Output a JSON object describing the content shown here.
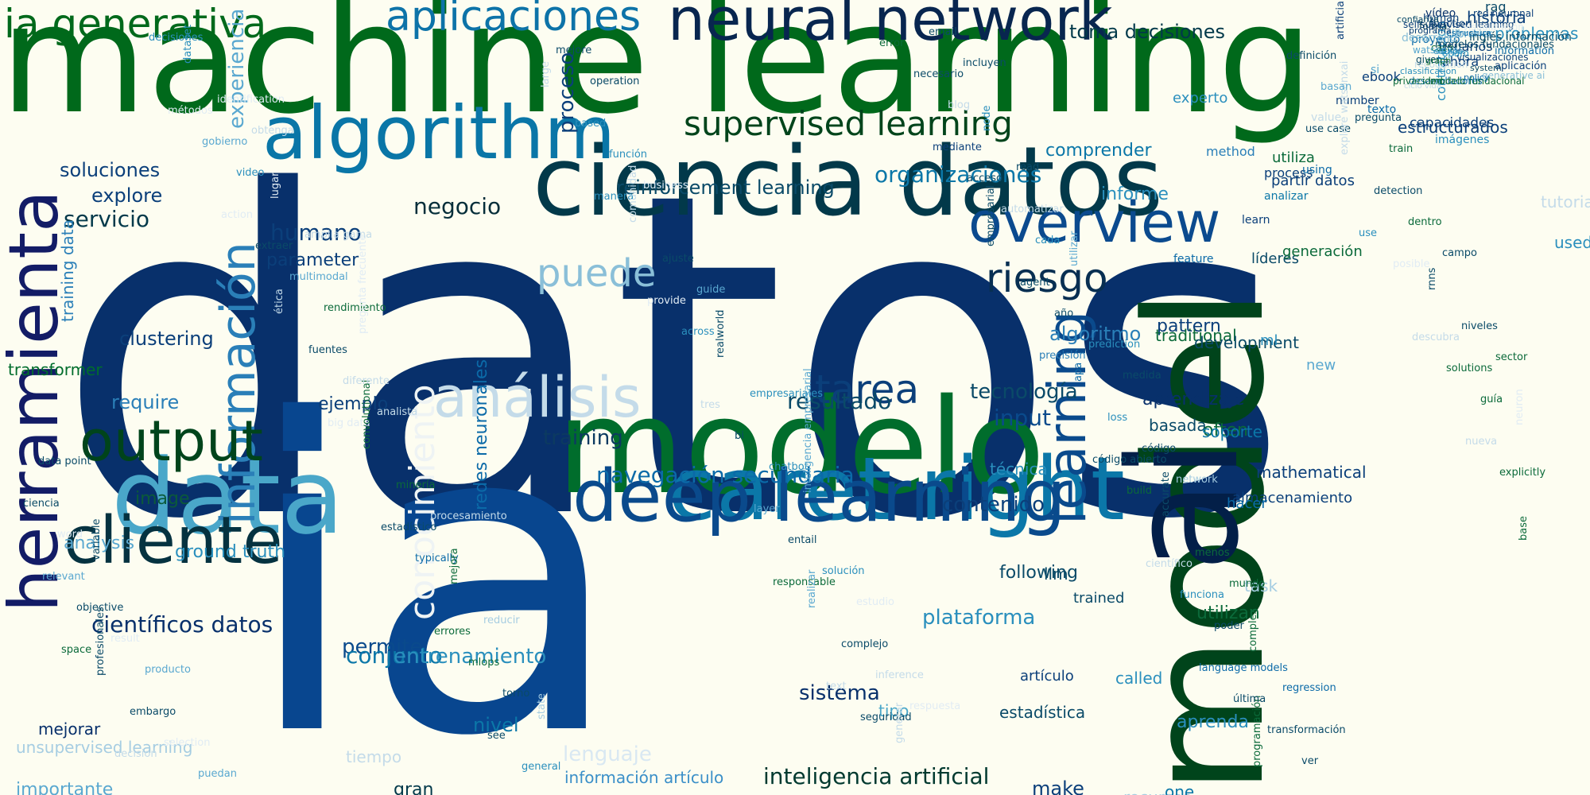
{
  "words": [
    {
      "text": "datos",
      "color": "#08306b"
    },
    {
      "text": "machine learning",
      "color": "#00691b"
    },
    {
      "text": "ia",
      "color": "#08468f"
    },
    {
      "text": "modelo",
      "color": "#006d2c"
    },
    {
      "text": "model",
      "color": "#00441b"
    },
    {
      "text": "ciencia datos",
      "color": "#02394a"
    },
    {
      "text": "ai",
      "color": "#031f48"
    },
    {
      "text": "herramienta",
      "color": "#131c66"
    },
    {
      "text": "caret right",
      "color": "#0b77a8"
    },
    {
      "text": "data",
      "color": "#4aa7c9"
    },
    {
      "text": "neural network",
      "color": "#08264f"
    },
    {
      "text": "algorithm",
      "color": "#0a76a7"
    },
    {
      "text": "deep learning",
      "color": "#0a4a8c"
    },
    {
      "text": "información",
      "color": "#2a7fb8"
    },
    {
      "text": "cliente",
      "color": "#053240"
    },
    {
      "text": "aplicaciones",
      "color": "#0d73a8"
    },
    {
      "text": "output",
      "color": "#00441b"
    },
    {
      "text": "ia generativa",
      "color": "#00691b"
    },
    {
      "text": "overview",
      "color": "#0b4a8e"
    },
    {
      "text": "conocimiento",
      "color": "#eef3f4"
    },
    {
      "text": "learning",
      "color": "#0a4a8c"
    },
    {
      "text": "análisis",
      "color": "#c4dbe9"
    },
    {
      "text": "supervised learning",
      "color": "#00441b"
    },
    {
      "text": "tarea",
      "color": "#0b3f7a"
    },
    {
      "text": "riesgo",
      "color": "#082f52"
    },
    {
      "text": "puede",
      "color": "#8abfd8"
    },
    {
      "text": "reinforcement learning",
      "color": "#0a4a68"
    },
    {
      "text": "científicos datos",
      "color": "#08306b"
    },
    {
      "text": "inteligencia artificial",
      "color": "#00392f"
    },
    {
      "text": "redes neuronales",
      "color": "#0b6aa8"
    },
    {
      "text": "lenguaje",
      "color": "#d9e8f2"
    },
    {
      "text": "training",
      "color": "#0c3a61"
    },
    {
      "text": "negocio",
      "color": "#052e3a"
    },
    {
      "text": "servicio",
      "color": "#02394a"
    },
    {
      "text": "humano",
      "color": "#0b3f7a"
    },
    {
      "text": "resultado",
      "color": "#0a4a68"
    },
    {
      "text": "permite",
      "color": "#0a4a8c"
    },
    {
      "text": "conjunto",
      "color": "#0b77a8"
    },
    {
      "text": "sistema",
      "color": "#08306b"
    },
    {
      "text": "información artículo",
      "color": "#3a8fc8"
    },
    {
      "text": "navegación secundaria",
      "color": "#0b6aa8"
    },
    {
      "text": "input",
      "color": "#0a4a8c"
    },
    {
      "text": "plataforma",
      "color": "#2a8fbd"
    },
    {
      "text": "organizaciones",
      "color": "#0b77a8"
    },
    {
      "text": "contenido",
      "color": "#0b3f7a"
    },
    {
      "text": "ground truth",
      "color": "#2a8fbd"
    },
    {
      "text": "entrenamiento",
      "color": "#2a8fbd"
    },
    {
      "text": "toma decisiones",
      "color": "#02394a"
    },
    {
      "text": "tecnología",
      "color": "#0a4a68"
    },
    {
      "text": "algoritmo",
      "color": "#2a7fb8"
    },
    {
      "text": "experiencia",
      "color": "#5aa8d0"
    },
    {
      "text": "proceso",
      "color": "#0b3f7a"
    },
    {
      "text": "explore",
      "color": "#0b3f7a"
    },
    {
      "text": "soluciones",
      "color": "#0b3f7a"
    },
    {
      "text": "parameter",
      "color": "#0b3f7a"
    },
    {
      "text": "comprender",
      "color": "#0b77a8"
    },
    {
      "text": "informe",
      "color": "#2a8fbd"
    },
    {
      "text": "aprendizaje",
      "color": "#08306b"
    },
    {
      "text": "pattern",
      "color": "#0b3f7a"
    },
    {
      "text": "clustering",
      "color": "#0b3f7a"
    },
    {
      "text": "ejemplo",
      "color": "#0b3f7a"
    },
    {
      "text": "require",
      "color": "#2a7fb8"
    },
    {
      "text": "image",
      "color": "#0b5a3a"
    },
    {
      "text": "analysis",
      "color": "#5aa8d0"
    },
    {
      "text": "training data",
      "color": "#2a7fb8"
    },
    {
      "text": "transformer",
      "color": "#006d2c"
    },
    {
      "text": "tiempo",
      "color": "#c4dbe9"
    },
    {
      "text": "importante",
      "color": "#5aa8d0"
    },
    {
      "text": "unsupervised learning",
      "color": "#a6cde2"
    },
    {
      "text": "mejorar",
      "color": "#08306b"
    },
    {
      "text": "nivel",
      "color": "#0b77a8"
    },
    {
      "text": "gran",
      "color": "#02394a"
    },
    {
      "text": "tipo",
      "color": "#4aa7c9"
    },
    {
      "text": "estadística",
      "color": "#0a4a68"
    },
    {
      "text": "aprenda",
      "color": "#2a8fbd"
    },
    {
      "text": "make",
      "color": "#0b3f7a"
    },
    {
      "text": "recursos",
      "color": "#a6cde2"
    },
    {
      "text": "one",
      "color": "#0b77a8"
    },
    {
      "text": "called",
      "color": "#2a8fbd"
    },
    {
      "text": "artículo",
      "color": "#0b3f7a"
    },
    {
      "text": "following",
      "color": "#0a4a68"
    },
    {
      "text": "llm",
      "color": "#0a4a68"
    },
    {
      "text": "trained",
      "color": "#0a4a68"
    },
    {
      "text": "utilizan",
      "color": "#0b6a3a"
    },
    {
      "text": "task",
      "color": "#a6cde2"
    },
    {
      "text": "técnica",
      "color": "#2a8fbd"
    },
    {
      "text": "basada",
      "color": "#0a4a68"
    },
    {
      "text": "often",
      "color": "#0b6a3a"
    },
    {
      "text": "almacenamiento",
      "color": "#0b3f7a"
    },
    {
      "text": "hacer",
      "color": "#0b6aa8"
    },
    {
      "text": "mathematical",
      "color": "#0b3f7a"
    },
    {
      "text": "traditional",
      "color": "#0b6a3a"
    },
    {
      "text": "soporte",
      "color": "#0b77a8"
    },
    {
      "text": "development",
      "color": "#0a4a68"
    },
    {
      "text": "ml",
      "color": "#2a8fbd"
    },
    {
      "text": "new",
      "color": "#5aa8d0"
    },
    {
      "text": "used",
      "color": "#2a8fbd"
    },
    {
      "text": "tutorial",
      "color": "#c4dbe9"
    },
    {
      "text": "problemas",
      "color": "#2a8fbd"
    },
    {
      "text": "historia",
      "color": "#0b3f7a"
    },
    {
      "text": "rag",
      "color": "#0a4a68"
    },
    {
      "text": "contratación",
      "color": "#2a8fbd"
    },
    {
      "text": "ahora",
      "color": "#0b3f7a"
    },
    {
      "text": "imágenes",
      "color": "#2a8fbd"
    },
    {
      "text": "usuarios",
      "color": "#0b3f7a"
    },
    {
      "text": "vídeo",
      "color": "#08306b"
    },
    {
      "text": "capacidades",
      "color": "#0b3f7a"
    },
    {
      "text": "process",
      "color": "#0b3f7a"
    },
    {
      "text": "method",
      "color": "#2a7fb8"
    },
    {
      "text": "líderes",
      "color": "#0a4a68"
    },
    {
      "text": "feature",
      "color": "#0b6aa8"
    },
    {
      "text": "experto",
      "color": "#2a8fbd"
    },
    {
      "text": "analizar",
      "color": "#0b77a8"
    },
    {
      "text": "generación",
      "color": "#0b6a3a"
    },
    {
      "text": "utiliza",
      "color": "#0b6a3a"
    },
    {
      "text": "partir datos",
      "color": "#0b3f7a"
    },
    {
      "text": "using",
      "color": "#0b6aa8"
    },
    {
      "text": "value",
      "color": "#c4dbe9"
    },
    {
      "text": "learn",
      "color": "#0b3f7a"
    },
    {
      "text": "number",
      "color": "#0b3f7a"
    },
    {
      "text": "si",
      "color": "#5aa8d0"
    },
    {
      "text": "estructurados",
      "color": "#0b3f7a"
    },
    {
      "text": "texto",
      "color": "#0b6aa8"
    },
    {
      "text": "proyecto",
      "color": "#0b6aa8"
    },
    {
      "text": "ebook",
      "color": "#0b3f7a"
    },
    {
      "text": "desarrollo",
      "color": "#8abfd8"
    },
    {
      "text": "libraries",
      "color": "#5aa8d0"
    },
    {
      "text": "information",
      "color": "#0b6aa8"
    },
    {
      "text": "generative ai",
      "color": "#8abfd8"
    },
    {
      "text": "aplicación",
      "color": "#0b3f7a"
    },
    {
      "text": "caso",
      "color": "#0b6a3a"
    },
    {
      "text": "inglés información",
      "color": "#0a4a68"
    },
    {
      "text": "forma",
      "color": "#02394a"
    },
    {
      "text": "watsonxai",
      "color": "#5aa8d0"
    },
    {
      "text": "human",
      "color": "#0b3f7a"
    },
    {
      "text": "modelos fundacionales",
      "color": "#0a4a68"
    },
    {
      "text": "desarrolladores",
      "color": "#0b6aa8"
    },
    {
      "text": "function",
      "color": "#0b3f7a"
    },
    {
      "text": "recognition",
      "color": "#c4dbe9"
    },
    {
      "text": "selfsupervised learning",
      "color": "#0b3f7a"
    },
    {
      "text": "red neuronal",
      "color": "#0b3f7a"
    },
    {
      "text": "visualizaciones",
      "color": "#0b3f7a"
    },
    {
      "text": "modelo fundacional",
      "color": "#0b6a3a"
    },
    {
      "text": "confianza",
      "color": "#0a4a68"
    },
    {
      "text": "given",
      "color": "#0a4a68"
    },
    {
      "text": "visualización",
      "color": "#e1ecf4"
    },
    {
      "text": "system",
      "color": "#0a4a68"
    },
    {
      "text": "spam",
      "color": "#2a8fbd"
    },
    {
      "text": "estructura",
      "color": "#0b6aa8"
    },
    {
      "text": "classification",
      "color": "#2a8fbd"
    },
    {
      "text": "privacidad",
      "color": "#0b6a3a"
    },
    {
      "text": "ciclo vida",
      "color": "#c4dbe9"
    },
    {
      "text": "graph",
      "color": "#0b6a3a"
    },
    {
      "text": "programa",
      "color": "#0b3f7a"
    },
    {
      "text": "policy",
      "color": "#0b6aa8"
    },
    {
      "text": "equipo",
      "color": "#2a8fbd"
    },
    {
      "text": "responsable",
      "color": "#0b6a3a"
    },
    {
      "text": "text",
      "color": "#c4dbe9"
    },
    {
      "text": "error",
      "color": "#0b6a3a"
    },
    {
      "text": "mediante",
      "color": "#0b3f7a"
    },
    {
      "text": "empresarial",
      "color": "#0a4a68"
    },
    {
      "text": "precisión",
      "color": "#2a7fb8"
    },
    {
      "text": "código abierto",
      "color": "#0a4a68"
    },
    {
      "text": "científico",
      "color": "#c4dbe9"
    },
    {
      "text": "language models",
      "color": "#0b6aa8"
    },
    {
      "text": "programación",
      "color": "#0b6a3a"
    },
    {
      "text": "use case",
      "color": "#0a4a68"
    },
    {
      "text": "use",
      "color": "#2a8fbd"
    },
    {
      "text": "descubra",
      "color": "#c4dbe9"
    },
    {
      "text": "nueva",
      "color": "#c4dbe9"
    },
    {
      "text": "base",
      "color": "#0b6a3a"
    },
    {
      "text": "space",
      "color": "#0b6a3a"
    },
    {
      "text": "decision",
      "color": "#c4dbe9"
    },
    {
      "text": "métodos",
      "color": "#e1ecf4"
    },
    {
      "text": "action",
      "color": "#e1ecf4"
    },
    {
      "text": "ética",
      "color": "#c4dbe9"
    },
    {
      "text": "big data",
      "color": "#e1ecf4"
    },
    {
      "text": "estadístico",
      "color": "#0a4a68"
    },
    {
      "text": "errores",
      "color": "#0b6a3a"
    },
    {
      "text": "see",
      "color": "#0a4a68"
    },
    {
      "text": "large",
      "color": "#c4dbe9"
    },
    {
      "text": "manera",
      "color": "#2a8fbd"
    },
    {
      "text": "provide",
      "color": "#e1ecf4"
    },
    {
      "text": "tres",
      "color": "#c4dbe9"
    },
    {
      "text": "layer",
      "color": "#5aa8d0"
    },
    {
      "text": "realizar",
      "color": "#5aa8d0"
    },
    {
      "text": "seguridad",
      "color": "#0a4a68"
    },
    {
      "text": "necesario",
      "color": "#0a4a68"
    },
    {
      "text": "acceso",
      "color": "#0a4a68"
    },
    {
      "text": "agent",
      "color": "#0a4a68"
    },
    {
      "text": "apa",
      "color": "#0b6aa8"
    },
    {
      "text": "build",
      "color": "#0b6a3a"
    },
    {
      "text": "funciona",
      "color": "#2a8fbd"
    },
    {
      "text": "última",
      "color": "#0a4a68"
    },
    {
      "text": "definición",
      "color": "#0a4a68"
    },
    {
      "text": "explore watsonxai",
      "color": "#c4dbe9"
    },
    {
      "text": "posible",
      "color": "#e1ecf4"
    },
    {
      "text": "solutions",
      "color": "#0b6a3a"
    },
    {
      "text": "explicitly",
      "color": "#0b6a3a"
    },
    {
      "text": "relevant",
      "color": "#5aa8d0"
    },
    {
      "text": "profesionales",
      "color": "#0a4a68"
    },
    {
      "text": "decisiones",
      "color": "#2a8fbd"
    },
    {
      "text": "gobierno",
      "color": "#5aa8d0"
    },
    {
      "text": "extraer",
      "color": "#0a4a68"
    },
    {
      "text": "fuentes",
      "color": "#0a4a68"
    },
    {
      "text": "convolutional",
      "color": "#0b6a3a"
    },
    {
      "text": "typically",
      "color": "#0b6aa8"
    },
    {
      "text": "mlops",
      "color": "#0b6a3a"
    },
    {
      "text": "general",
      "color": "#2a8fbd"
    },
    {
      "text": "based",
      "color": "#2a8fbd"
    },
    {
      "text": "comunidad",
      "color": "#c4dbe9"
    },
    {
      "text": "across",
      "color": "#2a8fbd"
    },
    {
      "text": "bi",
      "color": "#0a4a68"
    },
    {
      "text": "entail",
      "color": "#0a4a68"
    },
    {
      "text": "complejo",
      "color": "#0a4a68"
    },
    {
      "text": "generar",
      "color": "#c4dbe9"
    },
    {
      "text": "blog",
      "color": "#c4dbe9"
    },
    {
      "text": "automatizar",
      "color": "#c4dbe9"
    },
    {
      "text": "año",
      "color": "#0a4a68"
    },
    {
      "text": "loss",
      "color": "#2a8fbd"
    },
    {
      "text": "accurate",
      "color": "#0a4a68"
    },
    {
      "text": "poder",
      "color": "#0a4a68"
    },
    {
      "text": "transformación",
      "color": "#0a4a68"
    },
    {
      "text": "basan",
      "color": "#5aa8d0"
    },
    {
      "text": "detection",
      "color": "#0a4a68"
    },
    {
      "text": "rnns",
      "color": "#0a4a68"
    },
    {
      "text": "guía",
      "color": "#0b6a3a"
    },
    {
      "text": "ciencia",
      "color": "#0a4a68"
    },
    {
      "text": "objective",
      "color": "#0a4a68"
    },
    {
      "text": "embargo",
      "color": "#0a4a68"
    },
    {
      "text": "dataset",
      "color": "#2a8fbd"
    },
    {
      "text": "video",
      "color": "#2a8fbd"
    },
    {
      "text": "multimodal",
      "color": "#5aa8d0"
    },
    {
      "text": "diferente",
      "color": "#c4dbe9"
    },
    {
      "text": "minería",
      "color": "#0b6a3a"
    },
    {
      "text": "mejora",
      "color": "#0b6a3a"
    },
    {
      "text": "torno",
      "color": "#0a4a68"
    },
    {
      "text": "mejore",
      "color": "#0a4a68"
    },
    {
      "text": "función",
      "color": "#2a8fbd"
    },
    {
      "text": "ajuste",
      "color": "#0a4a68"
    },
    {
      "text": "realworld",
      "color": "#0a4a68"
    },
    {
      "text": "chatbot",
      "color": "#2a8fbd"
    },
    {
      "text": "solución",
      "color": "#2a8fbd"
    },
    {
      "text": "inference",
      "color": "#c4dbe9"
    },
    {
      "text": "email",
      "color": "#0a4a68"
    },
    {
      "text": "node",
      "color": "#2a8fbd"
    },
    {
      "text": "cada",
      "color": "#2a8fbd"
    },
    {
      "text": "prediction",
      "color": "#2a8fbd"
    },
    {
      "text": "código",
      "color": "#0a4a68"
    },
    {
      "text": "menos",
      "color": "#0b6a3a"
    },
    {
      "text": "complex",
      "color": "#0b6a3a"
    },
    {
      "text": "ver",
      "color": "#0a4a68"
    },
    {
      "text": "pregunta",
      "color": "#0a4a68"
    },
    {
      "text": "dentro",
      "color": "#0b6a3a"
    },
    {
      "text": "niveles",
      "color": "#0a4a68"
    },
    {
      "text": "neuron",
      "color": "#e1ecf4"
    },
    {
      "text": "word",
      "color": "#e1ecf4"
    },
    {
      "text": "result",
      "color": "#e1ecf4"
    },
    {
      "text": "selection",
      "color": "#e1ecf4"
    },
    {
      "text": "identification",
      "color": "#e1ecf4"
    },
    {
      "text": "lugar",
      "color": "#e1ecf4"
    },
    {
      "text": "rendimiento",
      "color": "#0b6a3a"
    },
    {
      "text": "analista",
      "color": "#c4dbe9"
    },
    {
      "text": "procesamiento",
      "color": "#c4dbe9"
    },
    {
      "text": "reducir",
      "color": "#a6cde2"
    },
    {
      "text": "state",
      "color": "#a6cde2"
    },
    {
      "text": "operation",
      "color": "#0a4a68"
    },
    {
      "text": "business",
      "color": "#e1ecf4"
    },
    {
      "text": "guide",
      "color": "#5aa8d0"
    },
    {
      "text": "empresariales",
      "color": "#2a8fbd"
    },
    {
      "text": "inteligencia empresarial",
      "color": "#5aa8d0"
    },
    {
      "text": "estudio",
      "color": "#e1ecf4"
    },
    {
      "text": "respuesta",
      "color": "#e1ecf4"
    },
    {
      "text": "incluyen",
      "color": "#0a4a68"
    },
    {
      "text": "read",
      "color": "#0a4a68"
    },
    {
      "text": "utilizar",
      "color": "#5aa8d0"
    },
    {
      "text": "medida",
      "color": "#0a4a68"
    },
    {
      "text": "network",
      "color": "#a6cde2"
    },
    {
      "text": "mundo",
      "color": "#0b6a3a"
    },
    {
      "text": "regression",
      "color": "#0b6aa8"
    },
    {
      "text": "artificial intelligence",
      "color": "#0b3f7a"
    },
    {
      "text": "train",
      "color": "#0b6a3a"
    },
    {
      "text": "campo",
      "color": "#0a4a68"
    },
    {
      "text": "sector",
      "color": "#0b6a3a"
    },
    {
      "text": "data point",
      "color": "#0a4a68"
    },
    {
      "text": "variable",
      "color": "#0a4a68"
    },
    {
      "text": "producto",
      "color": "#5aa8d0"
    },
    {
      "text": "puedan",
      "color": "#5aa8d0"
    },
    {
      "text": "obtenga",
      "color": "#c4dbe9"
    },
    {
      "text": "amplia gama",
      "color": "#c4dbe9"
    },
    {
      "text": "pregunta frecuente",
      "color": "#e1ecf4"
    }
  ]
}
